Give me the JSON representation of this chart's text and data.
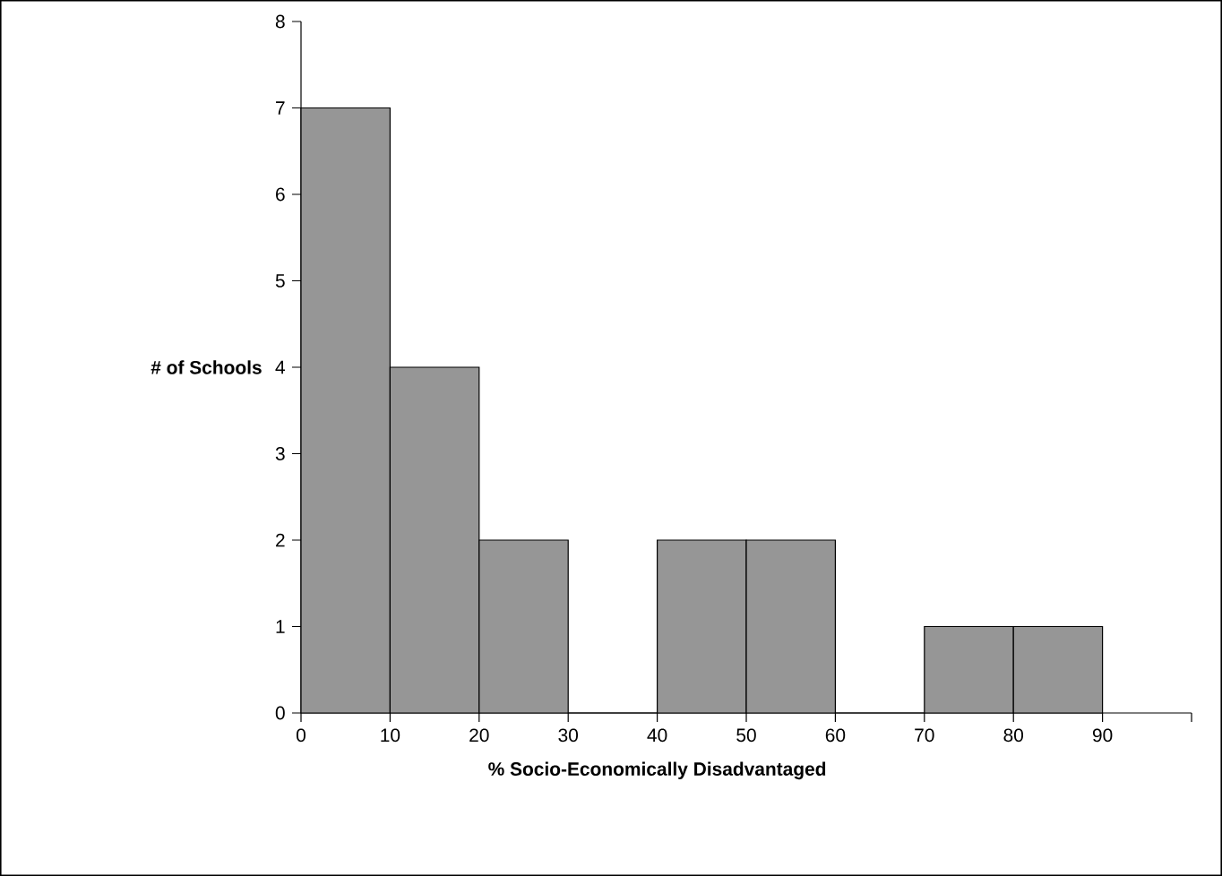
{
  "chart_data": {
    "type": "histogram",
    "xlabel": "% Socio-Economically Disadvantaged",
    "ylabel": "# of Schools",
    "bins": [
      0,
      10,
      20,
      30,
      40,
      50,
      60,
      70,
      80,
      90
    ],
    "values": [
      7,
      4,
      2,
      0,
      2,
      2,
      0,
      1,
      1
    ],
    "color": "#969696",
    "xlim": [
      0,
      100
    ],
    "xticks": [
      0,
      10,
      20,
      30,
      40,
      50,
      60,
      70,
      80,
      90,
      {
        "value": 100,
        "label": null
      }
    ],
    "ylim": [
      0,
      8
    ],
    "yticks": [
      0,
      1,
      2,
      3,
      4,
      5,
      6,
      7,
      8
    ]
  }
}
